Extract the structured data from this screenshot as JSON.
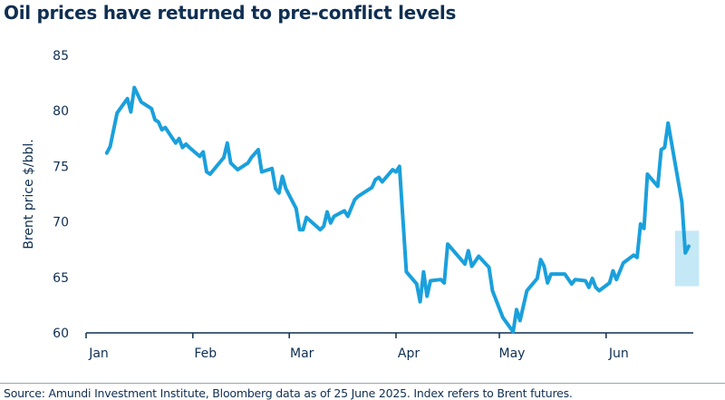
{
  "chart_data": {
    "type": "line",
    "title": "Oil prices have returned to pre-conflict levels",
    "ylabel": "Brent price $/bbl.",
    "xlabel": "",
    "ylim": [
      60,
      85
    ],
    "yticks": [
      60,
      65,
      70,
      75,
      80,
      85
    ],
    "xlim": [
      "2025-01-01",
      "2025-06-30"
    ],
    "xticks": [
      {
        "date": "2025-01-01",
        "label": "Jan"
      },
      {
        "date": "2025-02-01",
        "label": "Feb"
      },
      {
        "date": "2025-03-01",
        "label": "Mar"
      },
      {
        "date": "2025-04-01",
        "label": "Apr"
      },
      {
        "date": "2025-05-01",
        "label": "May"
      },
      {
        "date": "2025-06-01",
        "label": "Jun"
      }
    ],
    "grid": false,
    "line_color": "#1aa0dc",
    "highlight": {
      "x": [
        "2025-06-21",
        "2025-06-28"
      ],
      "y": [
        64.2,
        69.2
      ],
      "color": "#c5e8f7"
    },
    "points": [
      [
        "2025-01-07",
        76.2
      ],
      [
        "2025-01-08",
        76.8
      ],
      [
        "2025-01-10",
        79.8
      ],
      [
        "2025-01-13",
        81.1
      ],
      [
        "2025-01-14",
        79.9
      ],
      [
        "2025-01-15",
        82.1
      ],
      [
        "2025-01-17",
        80.8
      ],
      [
        "2025-01-20",
        80.2
      ],
      [
        "2025-01-21",
        79.2
      ],
      [
        "2025-01-22",
        79.0
      ],
      [
        "2025-01-23",
        78.3
      ],
      [
        "2025-01-24",
        78.5
      ],
      [
        "2025-01-27",
        77.1
      ],
      [
        "2025-01-28",
        77.5
      ],
      [
        "2025-01-29",
        76.7
      ],
      [
        "2025-01-30",
        77.0
      ],
      [
        "2025-01-31",
        76.7
      ],
      [
        "2025-02-03",
        75.9
      ],
      [
        "2025-02-04",
        76.3
      ],
      [
        "2025-02-05",
        74.5
      ],
      [
        "2025-02-06",
        74.3
      ],
      [
        "2025-02-10",
        75.8
      ],
      [
        "2025-02-11",
        77.1
      ],
      [
        "2025-02-12",
        75.3
      ],
      [
        "2025-02-14",
        74.7
      ],
      [
        "2025-02-17",
        75.3
      ],
      [
        "2025-02-18",
        75.8
      ],
      [
        "2025-02-20",
        76.5
      ],
      [
        "2025-02-21",
        74.5
      ],
      [
        "2025-02-24",
        74.8
      ],
      [
        "2025-02-25",
        73.0
      ],
      [
        "2025-02-26",
        72.6
      ],
      [
        "2025-02-27",
        74.1
      ],
      [
        "2025-02-28",
        73.0
      ],
      [
        "2025-03-03",
        71.2
      ],
      [
        "2025-03-04",
        69.3
      ],
      [
        "2025-03-05",
        69.3
      ],
      [
        "2025-03-06",
        70.4
      ],
      [
        "2025-03-10",
        69.3
      ],
      [
        "2025-03-11",
        69.6
      ],
      [
        "2025-03-12",
        70.9
      ],
      [
        "2025-03-13",
        69.9
      ],
      [
        "2025-03-14",
        70.5
      ],
      [
        "2025-03-17",
        71.0
      ],
      [
        "2025-03-18",
        70.5
      ],
      [
        "2025-03-20",
        72.0
      ],
      [
        "2025-03-21",
        72.3
      ],
      [
        "2025-03-25",
        73.1
      ],
      [
        "2025-03-26",
        73.8
      ],
      [
        "2025-03-27",
        74.0
      ],
      [
        "2025-03-28",
        73.6
      ],
      [
        "2025-03-31",
        74.7
      ],
      [
        "2025-04-01",
        74.5
      ],
      [
        "2025-04-02",
        75.0
      ],
      [
        "2025-04-04",
        65.5
      ],
      [
        "2025-04-07",
        64.4
      ],
      [
        "2025-04-08",
        62.8
      ],
      [
        "2025-04-09",
        65.5
      ],
      [
        "2025-04-10",
        63.3
      ],
      [
        "2025-04-11",
        64.7
      ],
      [
        "2025-04-14",
        64.8
      ],
      [
        "2025-04-15",
        64.5
      ],
      [
        "2025-04-16",
        68.0
      ],
      [
        "2025-04-21",
        66.2
      ],
      [
        "2025-04-22",
        67.4
      ],
      [
        "2025-04-23",
        66.0
      ],
      [
        "2025-04-25",
        66.9
      ],
      [
        "2025-04-28",
        65.9
      ],
      [
        "2025-04-29",
        63.8
      ],
      [
        "2025-05-02",
        61.4
      ],
      [
        "2025-05-05",
        60.1
      ],
      [
        "2025-05-06",
        62.1
      ],
      [
        "2025-05-07",
        61.1
      ],
      [
        "2025-05-09",
        63.8
      ],
      [
        "2025-05-12",
        64.9
      ],
      [
        "2025-05-13",
        66.6
      ],
      [
        "2025-05-14",
        66.0
      ],
      [
        "2025-05-15",
        64.5
      ],
      [
        "2025-05-16",
        65.3
      ],
      [
        "2025-05-20",
        65.3
      ],
      [
        "2025-05-22",
        64.4
      ],
      [
        "2025-05-23",
        64.8
      ],
      [
        "2025-05-26",
        64.7
      ],
      [
        "2025-05-27",
        64.1
      ],
      [
        "2025-05-28",
        64.9
      ],
      [
        "2025-05-29",
        64.1
      ],
      [
        "2025-05-30",
        63.8
      ],
      [
        "2025-06-02",
        64.5
      ],
      [
        "2025-06-03",
        65.6
      ],
      [
        "2025-06-04",
        64.8
      ],
      [
        "2025-06-06",
        66.3
      ],
      [
        "2025-06-09",
        67.0
      ],
      [
        "2025-06-10",
        66.8
      ],
      [
        "2025-06-11",
        69.8
      ],
      [
        "2025-06-12",
        69.4
      ],
      [
        "2025-06-13",
        74.3
      ],
      [
        "2025-06-16",
        73.2
      ],
      [
        "2025-06-17",
        76.5
      ],
      [
        "2025-06-18",
        76.7
      ],
      [
        "2025-06-19",
        78.9
      ],
      [
        "2025-06-23",
        71.8
      ],
      [
        "2025-06-24",
        67.2
      ],
      [
        "2025-06-25",
        67.8
      ]
    ]
  },
  "source": "Source: Amundi Investment Institute, Bloomberg data as of 25 June 2025. Index refers to Brent futures."
}
